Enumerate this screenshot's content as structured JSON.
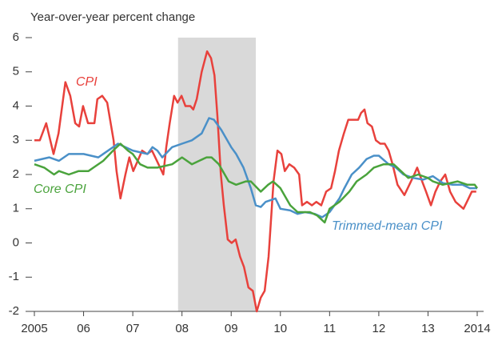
{
  "chart_data": {
    "type": "line",
    "title": "Year-over-year percent change",
    "xlim": [
      2005,
      2014
    ],
    "xticks": [
      2005,
      {
        "value": 2006,
        "label": "06"
      },
      {
        "value": 2007,
        "label": "07"
      },
      {
        "value": 2008,
        "label": "08"
      },
      {
        "value": 2009,
        "label": "09"
      },
      {
        "value": 2010,
        "label": "10"
      },
      {
        "value": 2011,
        "label": "11"
      },
      {
        "value": 2012,
        "label": "12"
      },
      {
        "value": 2013,
        "label": "13"
      },
      2014
    ],
    "ylim": [
      -2,
      6
    ],
    "yticks": [
      -2,
      -1,
      0,
      1,
      2,
      3,
      4,
      5,
      6
    ],
    "grid": false,
    "recession": {
      "start": 2007.92,
      "end": 2009.5,
      "color": "#d9d9d9"
    },
    "series": [
      {
        "name": "CPI",
        "color": "#e8413c",
        "x": [
          2005.0,
          2005.11,
          2005.24,
          2005.39,
          2005.49,
          2005.63,
          2005.73,
          2005.83,
          2005.91,
          2005.99,
          2006.09,
          2006.22,
          2006.28,
          2006.38,
          2006.48,
          2006.61,
          2006.67,
          2006.75,
          2006.85,
          2006.93,
          2007.01,
          2007.1,
          2007.19,
          2007.29,
          2007.39,
          2007.49,
          2007.62,
          2007.68,
          2007.75,
          2007.84,
          2007.91,
          2007.99,
          2008.07,
          2008.17,
          2008.23,
          2008.3,
          2008.4,
          2008.51,
          2008.59,
          2008.66,
          2008.72,
          2008.79,
          2008.85,
          2008.93,
          2009.01,
          2009.09,
          2009.18,
          2009.26,
          2009.35,
          2009.44,
          2009.52,
          2009.6,
          2009.68,
          2009.76,
          2009.86,
          2009.94,
          2010.02,
          2010.09,
          2010.18,
          2010.28,
          2010.38,
          2010.44,
          2010.54,
          2010.64,
          2010.73,
          2010.83,
          2010.93,
          2011.03,
          2011.11,
          2011.19,
          2011.29,
          2011.38,
          2011.48,
          2011.58,
          2011.64,
          2011.71,
          2011.77,
          2011.86,
          2011.94,
          2012.03,
          2012.12,
          2012.2,
          2012.28,
          2012.38,
          2012.52,
          2012.62,
          2012.72,
          2012.78,
          2012.88,
          2012.96,
          2013.06,
          2013.15,
          2013.25,
          2013.35,
          2013.45,
          2013.56,
          2013.72,
          2013.79,
          2013.89,
          2013.98
        ],
        "values": [
          3.0,
          3.0,
          3.5,
          2.6,
          3.2,
          4.7,
          4.3,
          3.5,
          3.4,
          4.0,
          3.5,
          3.5,
          4.2,
          4.3,
          4.1,
          3.0,
          2.1,
          1.3,
          2.0,
          2.5,
          2.1,
          2.4,
          2.7,
          2.6,
          2.7,
          2.4,
          2.0,
          2.8,
          3.5,
          4.3,
          4.1,
          4.3,
          4.0,
          4.0,
          3.9,
          4.2,
          5.0,
          5.6,
          5.4,
          4.9,
          3.7,
          2.0,
          1.1,
          0.1,
          0.0,
          0.1,
          -0.4,
          -0.7,
          -1.3,
          -1.4,
          -2.0,
          -1.6,
          -1.4,
          -0.4,
          1.8,
          2.7,
          2.6,
          2.1,
          2.3,
          2.2,
          2.0,
          1.1,
          1.2,
          1.1,
          1.2,
          1.1,
          1.5,
          1.6,
          2.1,
          2.7,
          3.2,
          3.6,
          3.6,
          3.6,
          3.8,
          3.9,
          3.5,
          3.4,
          3.0,
          2.9,
          2.9,
          2.7,
          2.3,
          1.7,
          1.4,
          1.7,
          2.0,
          2.2,
          1.8,
          1.5,
          1.1,
          1.5,
          1.8,
          2.0,
          1.5,
          1.2,
          1.0,
          1.2,
          1.5,
          1.5
        ]
      },
      {
        "name": "Trimmed-mean CPI",
        "color": "#4a90c8",
        "x": [
          2005.0,
          2005.3,
          2005.5,
          2005.7,
          2006.0,
          2006.3,
          2006.6,
          2006.7,
          2007.0,
          2007.3,
          2007.4,
          2007.5,
          2007.6,
          2007.8,
          2008.0,
          2008.2,
          2008.4,
          2008.55,
          2008.65,
          2008.8,
          2009.0,
          2009.1,
          2009.25,
          2009.4,
          2009.5,
          2009.6,
          2009.7,
          2009.8,
          2009.9,
          2010.0,
          2010.2,
          2010.35,
          2010.5,
          2010.7,
          2010.85,
          2011.0,
          2011.2,
          2011.3,
          2011.45,
          2011.6,
          2011.75,
          2011.9,
          2012.0,
          2012.2,
          2012.35,
          2012.5,
          2012.7,
          2012.9,
          2013.1,
          2013.3,
          2013.5,
          2013.7,
          2013.85,
          2014.0
        ],
        "values": [
          2.4,
          2.5,
          2.4,
          2.6,
          2.6,
          2.5,
          2.8,
          2.9,
          2.7,
          2.6,
          2.8,
          2.7,
          2.5,
          2.8,
          2.9,
          3.0,
          3.2,
          3.65,
          3.6,
          3.3,
          2.8,
          2.6,
          2.2,
          1.6,
          1.1,
          1.05,
          1.2,
          1.25,
          1.3,
          1.0,
          0.95,
          0.85,
          0.9,
          0.85,
          0.75,
          0.9,
          1.3,
          1.6,
          2.0,
          2.2,
          2.45,
          2.55,
          2.55,
          2.3,
          2.2,
          2.0,
          1.9,
          1.85,
          1.95,
          1.75,
          1.7,
          1.7,
          1.6,
          1.6
        ]
      },
      {
        "name": "Core CPI",
        "color": "#4aa33c",
        "x": [
          2005.0,
          2005.2,
          2005.4,
          2005.5,
          2005.7,
          2005.9,
          2006.1,
          2006.2,
          2006.4,
          2006.6,
          2006.75,
          2006.9,
          2007.0,
          2007.15,
          2007.3,
          2007.5,
          2007.8,
          2008.0,
          2008.2,
          2008.35,
          2008.5,
          2008.6,
          2008.75,
          2008.95,
          2009.1,
          2009.3,
          2009.4,
          2009.6,
          2009.75,
          2009.85,
          2010.0,
          2010.2,
          2010.35,
          2010.6,
          2010.75,
          2010.9,
          2011.0,
          2011.2,
          2011.4,
          2011.55,
          2011.75,
          2011.9,
          2012.1,
          2012.3,
          2012.45,
          2012.6,
          2012.8,
          2013.0,
          2013.1,
          2013.3,
          2013.6,
          2013.8,
          2013.95,
          2014.0
        ],
        "values": [
          2.3,
          2.2,
          2.0,
          2.1,
          2.0,
          2.1,
          2.1,
          2.2,
          2.4,
          2.7,
          2.9,
          2.7,
          2.6,
          2.3,
          2.2,
          2.2,
          2.3,
          2.5,
          2.3,
          2.4,
          2.5,
          2.5,
          2.3,
          1.8,
          1.7,
          1.8,
          1.8,
          1.5,
          1.7,
          1.8,
          1.6,
          1.1,
          0.9,
          0.9,
          0.8,
          0.6,
          1.0,
          1.2,
          1.5,
          1.8,
          2.0,
          2.2,
          2.3,
          2.3,
          2.1,
          1.9,
          2.0,
          1.9,
          1.8,
          1.7,
          1.8,
          1.7,
          1.7,
          1.6
        ]
      }
    ]
  }
}
